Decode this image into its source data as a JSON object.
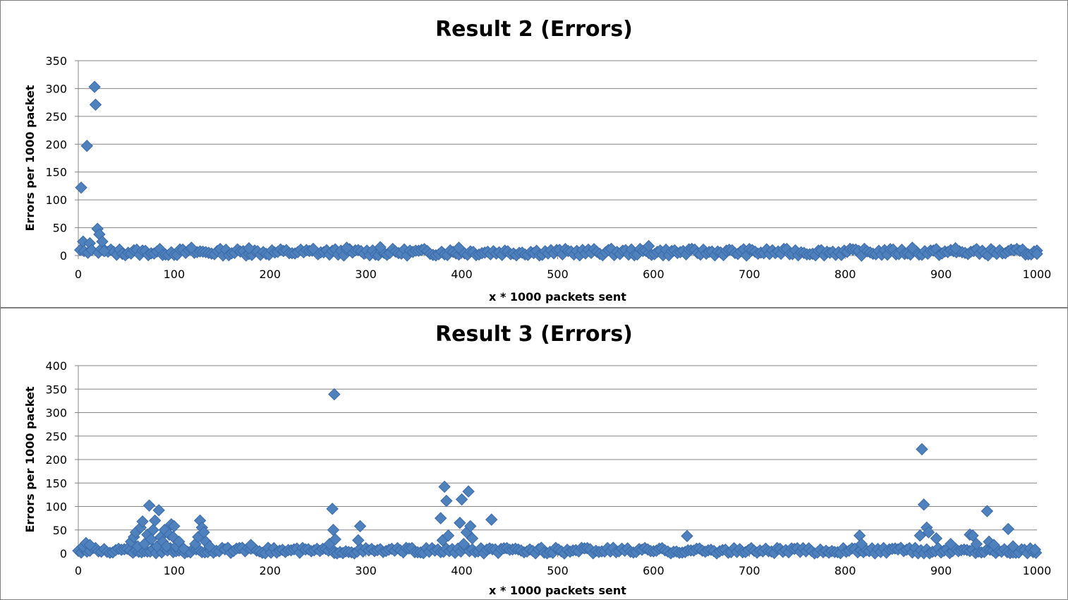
{
  "chart_data": [
    {
      "type": "scatter",
      "title": "Result 2 (Errors)",
      "xlabel": "x * 1000 packets sent",
      "ylabel": "Errors per 1000 packet",
      "xlim": [
        0,
        1000
      ],
      "ylim": [
        0,
        350
      ],
      "xticks": [
        "0",
        "100",
        "200",
        "300",
        "400",
        "500",
        "600",
        "700",
        "800",
        "900",
        "1000"
      ],
      "yticks": [
        "0",
        "50",
        "100",
        "150",
        "200",
        "250",
        "300",
        "350"
      ],
      "grid": true,
      "legend": "none",
      "marker": "diamond",
      "color": "#4f81bd",
      "baseline": {
        "x_start": 28,
        "x_end": 1000,
        "step": 3,
        "y_min": 0,
        "y_max": 12
      },
      "points": [
        {
          "x": 2,
          "y": 10
        },
        {
          "x": 3,
          "y": 122
        },
        {
          "x": 5,
          "y": 25
        },
        {
          "x": 6,
          "y": 8
        },
        {
          "x": 9,
          "y": 197
        },
        {
          "x": 10,
          "y": 5
        },
        {
          "x": 12,
          "y": 22
        },
        {
          "x": 14,
          "y": 10
        },
        {
          "x": 17,
          "y": 303
        },
        {
          "x": 18,
          "y": 271
        },
        {
          "x": 20,
          "y": 48
        },
        {
          "x": 21,
          "y": 5
        },
        {
          "x": 22,
          "y": 38
        },
        {
          "x": 24,
          "y": 12
        },
        {
          "x": 25,
          "y": 25
        },
        {
          "x": 27,
          "y": 8
        },
        {
          "x": 118,
          "y": 14
        },
        {
          "x": 178,
          "y": 13
        },
        {
          "x": 245,
          "y": 12
        },
        {
          "x": 280,
          "y": 14
        },
        {
          "x": 315,
          "y": 15
        },
        {
          "x": 397,
          "y": 14
        },
        {
          "x": 595,
          "y": 17
        },
        {
          "x": 870,
          "y": 14
        },
        {
          "x": 915,
          "y": 13
        },
        {
          "x": 1000,
          "y": 3
        }
      ]
    },
    {
      "type": "scatter",
      "title": "Result 3 (Errors)",
      "xlabel": "x * 1000 packets sent",
      "ylabel": "Errors per 1000 packet",
      "xlim": [
        0,
        1000
      ],
      "ylim": [
        0,
        400
      ],
      "xticks": [
        "0",
        "100",
        "200",
        "300",
        "400",
        "500",
        "600",
        "700",
        "800",
        "900",
        "1000"
      ],
      "yticks": [
        "0",
        "50",
        "100",
        "150",
        "200",
        "250",
        "300",
        "350",
        "400"
      ],
      "grid": true,
      "legend": "none",
      "marker": "diamond",
      "color": "#4f81bd",
      "baseline": {
        "x_start": 0,
        "x_end": 1000,
        "step": 3,
        "y_min": 0,
        "y_max": 12
      },
      "points": [
        {
          "x": 5,
          "y": 15
        },
        {
          "x": 8,
          "y": 22
        },
        {
          "x": 12,
          "y": 18
        },
        {
          "x": 55,
          "y": 25
        },
        {
          "x": 58,
          "y": 35
        },
        {
          "x": 60,
          "y": 45
        },
        {
          "x": 62,
          "y": 15
        },
        {
          "x": 65,
          "y": 55
        },
        {
          "x": 67,
          "y": 68
        },
        {
          "x": 69,
          "y": 20
        },
        {
          "x": 72,
          "y": 40
        },
        {
          "x": 74,
          "y": 102
        },
        {
          "x": 76,
          "y": 30
        },
        {
          "x": 78,
          "y": 50
        },
        {
          "x": 80,
          "y": 70
        },
        {
          "x": 82,
          "y": 15
        },
        {
          "x": 84,
          "y": 92
        },
        {
          "x": 86,
          "y": 35
        },
        {
          "x": 88,
          "y": 25
        },
        {
          "x": 90,
          "y": 50
        },
        {
          "x": 92,
          "y": 15
        },
        {
          "x": 95,
          "y": 40
        },
        {
          "x": 97,
          "y": 62
        },
        {
          "x": 99,
          "y": 35
        },
        {
          "x": 100,
          "y": 58
        },
        {
          "x": 102,
          "y": 15
        },
        {
          "x": 105,
          "y": 25
        },
        {
          "x": 110,
          "y": 10
        },
        {
          "x": 122,
          "y": 20
        },
        {
          "x": 125,
          "y": 35
        },
        {
          "x": 127,
          "y": 70
        },
        {
          "x": 129,
          "y": 55
        },
        {
          "x": 131,
          "y": 45
        },
        {
          "x": 133,
          "y": 25
        },
        {
          "x": 137,
          "y": 15
        },
        {
          "x": 180,
          "y": 18
        },
        {
          "x": 262,
          "y": 20
        },
        {
          "x": 265,
          "y": 95
        },
        {
          "x": 266,
          "y": 50
        },
        {
          "x": 267,
          "y": 339
        },
        {
          "x": 268,
          "y": 30
        },
        {
          "x": 292,
          "y": 28
        },
        {
          "x": 294,
          "y": 58
        },
        {
          "x": 378,
          "y": 75
        },
        {
          "x": 380,
          "y": 28
        },
        {
          "x": 382,
          "y": 142
        },
        {
          "x": 384,
          "y": 112
        },
        {
          "x": 386,
          "y": 38
        },
        {
          "x": 398,
          "y": 65
        },
        {
          "x": 400,
          "y": 115
        },
        {
          "x": 402,
          "y": 20
        },
        {
          "x": 405,
          "y": 45
        },
        {
          "x": 407,
          "y": 132
        },
        {
          "x": 409,
          "y": 58
        },
        {
          "x": 411,
          "y": 32
        },
        {
          "x": 431,
          "y": 72
        },
        {
          "x": 635,
          "y": 37
        },
        {
          "x": 815,
          "y": 38
        },
        {
          "x": 817,
          "y": 20
        },
        {
          "x": 878,
          "y": 38
        },
        {
          "x": 880,
          "y": 222
        },
        {
          "x": 882,
          "y": 104
        },
        {
          "x": 885,
          "y": 55
        },
        {
          "x": 887,
          "y": 45
        },
        {
          "x": 895,
          "y": 32
        },
        {
          "x": 910,
          "y": 20
        },
        {
          "x": 930,
          "y": 40
        },
        {
          "x": 933,
          "y": 38
        },
        {
          "x": 937,
          "y": 20
        },
        {
          "x": 948,
          "y": 90
        },
        {
          "x": 950,
          "y": 25
        },
        {
          "x": 955,
          "y": 18
        },
        {
          "x": 970,
          "y": 52
        },
        {
          "x": 975,
          "y": 15
        },
        {
          "x": 998,
          "y": 8
        }
      ]
    }
  ]
}
